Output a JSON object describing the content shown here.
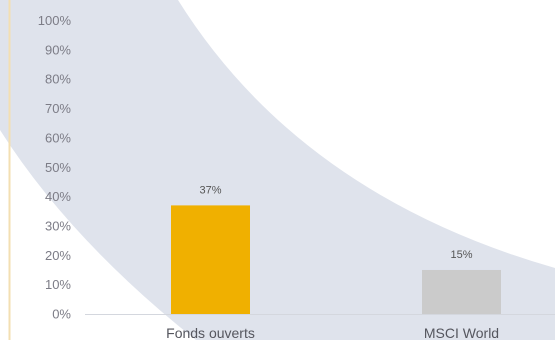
{
  "chart_data": {
    "type": "bar",
    "categories": [
      "Fonds ouverts",
      "MSCI World"
    ],
    "values": [
      37,
      15
    ],
    "data_labels": [
      "37%",
      "15%"
    ],
    "colors": [
      "#f0b000",
      "#cbcbcb"
    ],
    "y_ticks": [
      "0%",
      "10%",
      "20%",
      "30%",
      "40%",
      "50%",
      "60%",
      "70%",
      "80%",
      "90%",
      "100%"
    ],
    "ylim": [
      0,
      100
    ],
    "grid": false,
    "title": "",
    "xlabel": "",
    "ylabel": ""
  }
}
